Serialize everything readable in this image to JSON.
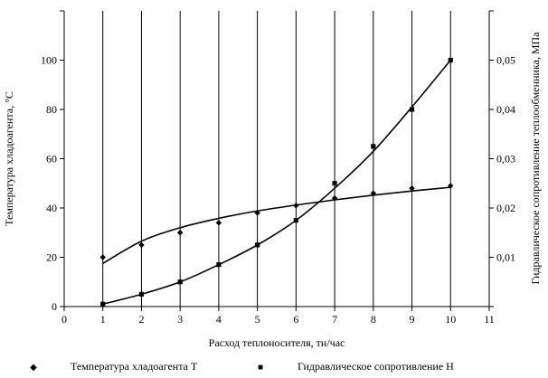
{
  "chart_data": {
    "type": "line",
    "x": [
      1,
      2,
      3,
      4,
      5,
      6,
      7,
      8,
      9,
      10
    ],
    "xlabel": "Расход теплоносителя, тн/час",
    "ylabel_left": "Температура хладоагента, °C",
    "ylabel_right": "Гидравлическое сопротивление теплообменника, МПа",
    "xlim": [
      0,
      11
    ],
    "ylim_left": [
      0,
      120
    ],
    "ylim_right": [
      0,
      0.06
    ],
    "x_ticks": [
      "0",
      "1",
      "2",
      "3",
      "4",
      "5",
      "6",
      "7",
      "8",
      "9",
      "10",
      "11"
    ],
    "y_ticks_left": [
      "0",
      "20",
      "40",
      "60",
      "80",
      "100"
    ],
    "y_tick_values_left": [
      0,
      20,
      40,
      60,
      80,
      100
    ],
    "y_ticks_right": [
      "0,01",
      "0,02",
      "0,03",
      "0,04",
      "0,05"
    ],
    "y_tick_values_right": [
      0.01,
      0.02,
      0.03,
      0.04,
      0.05
    ],
    "grid": "vertical",
    "series": [
      {
        "name": "Температура хладоагента Т",
        "axis": "left",
        "marker": "diamond",
        "values": [
          20,
          25,
          30,
          34,
          38,
          41,
          44,
          46,
          48,
          49
        ],
        "trend": [
          17.5,
          26.5,
          32,
          35.8,
          38.8,
          41.2,
          43.3,
          45.2,
          46.9,
          48.4
        ]
      },
      {
        "name": "Гидравлическое сопротивление Н",
        "axis": "right",
        "marker": "square",
        "values": [
          0.0005,
          0.0025,
          0.005,
          0.0085,
          0.0125,
          0.0175,
          0.025,
          0.0325,
          0.04,
          0.05
        ],
        "trend": [
          0.0005,
          0.0025,
          0.005,
          0.0085,
          0.0125,
          0.0175,
          0.024,
          0.0315,
          0.0405,
          0.05
        ]
      }
    ],
    "legend_position": "bottom",
    "legend_symbols": [
      "◆",
      "■"
    ]
  }
}
